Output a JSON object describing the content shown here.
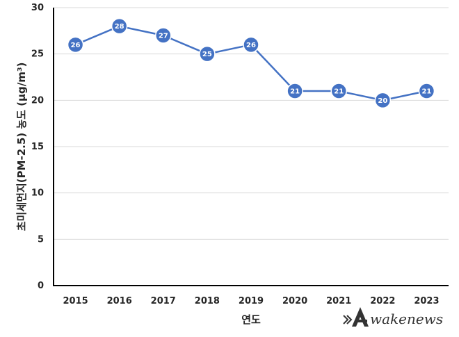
{
  "chart_data": {
    "type": "line",
    "categories": [
      "2015",
      "2016",
      "2017",
      "2018",
      "2019",
      "2020",
      "2021",
      "2022",
      "2023"
    ],
    "series": [
      {
        "values": [
          26,
          28,
          27,
          25,
          26,
          21,
          21,
          20,
          21
        ]
      }
    ],
    "data_labels": [
      "26",
      "28",
      "27",
      "25",
      "26",
      "21",
      "21",
      "20",
      "21"
    ],
    "xlabel": "연도",
    "ylabel": "초미세먼지(PM-2.5) 농도 (μg/m³)",
    "ylim": [
      0,
      30
    ],
    "yticks": [
      0,
      5,
      10,
      15,
      20,
      25,
      30
    ],
    "grid": true,
    "legend": "none",
    "colors": {
      "line": "#4472C4",
      "marker": "#4472C4",
      "marker_border": "#ffffff",
      "grid": "#d9d9d9",
      "axis": "#000000"
    }
  },
  "watermark": {
    "text": "wakenews",
    "logo_letter": "A"
  }
}
